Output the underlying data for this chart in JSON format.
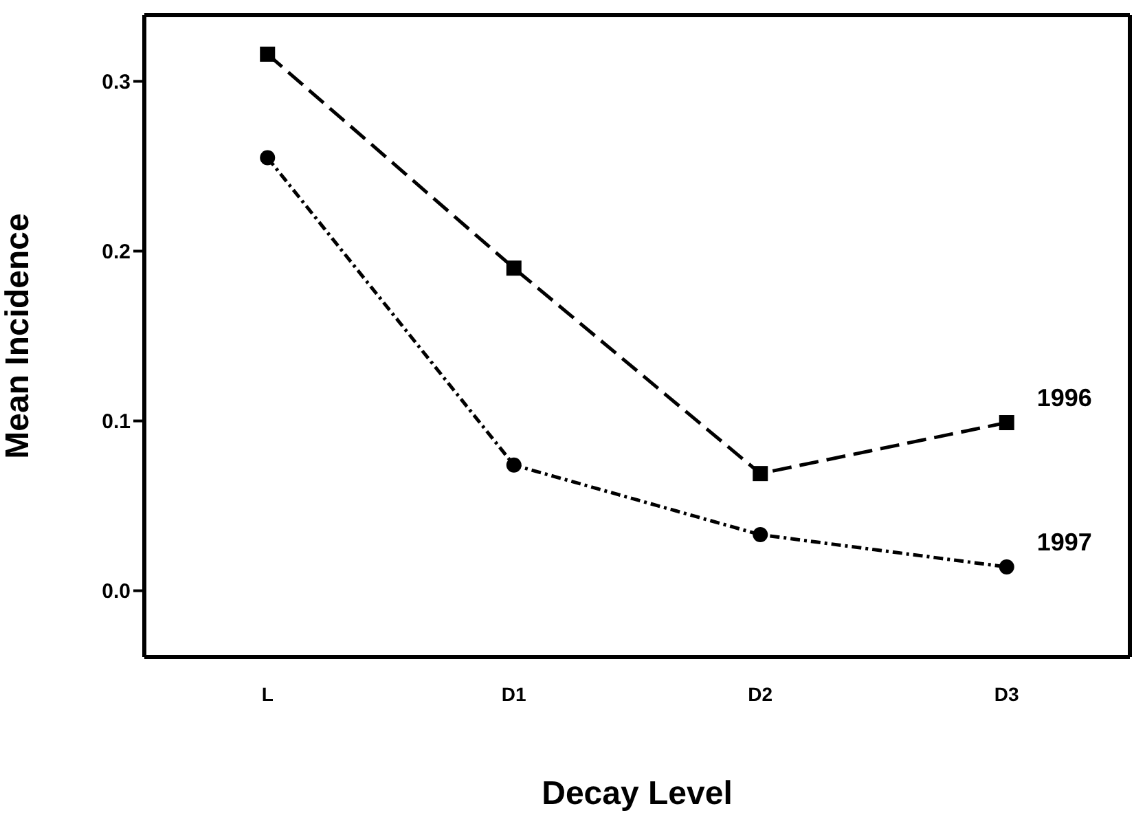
{
  "chart_data": {
    "type": "line",
    "xlabel": "Decay Level",
    "ylabel": "Mean Incidence",
    "categories": [
      "L",
      "D1",
      "D2",
      "D3"
    ],
    "series": [
      {
        "name": "1996",
        "color": "#000000",
        "values": [
          0.316,
          0.19,
          0.069,
          0.099
        ],
        "line_style": "dashed",
        "marker": "square"
      },
      {
        "name": "1997",
        "color": "#000000",
        "values": [
          0.255,
          0.074,
          0.033,
          0.014
        ],
        "line_style": "dotted",
        "marker": "circle"
      }
    ],
    "ylim": [
      -0.039,
      0.339
    ],
    "yticks": [
      {
        "value": 0,
        "label": "0.0"
      },
      {
        "value": 0.1,
        "label": "0.1"
      },
      {
        "value": 0.2,
        "label": "0.2"
      },
      {
        "value": 0.3,
        "label": "0.3"
      }
    ],
    "grid": false
  }
}
